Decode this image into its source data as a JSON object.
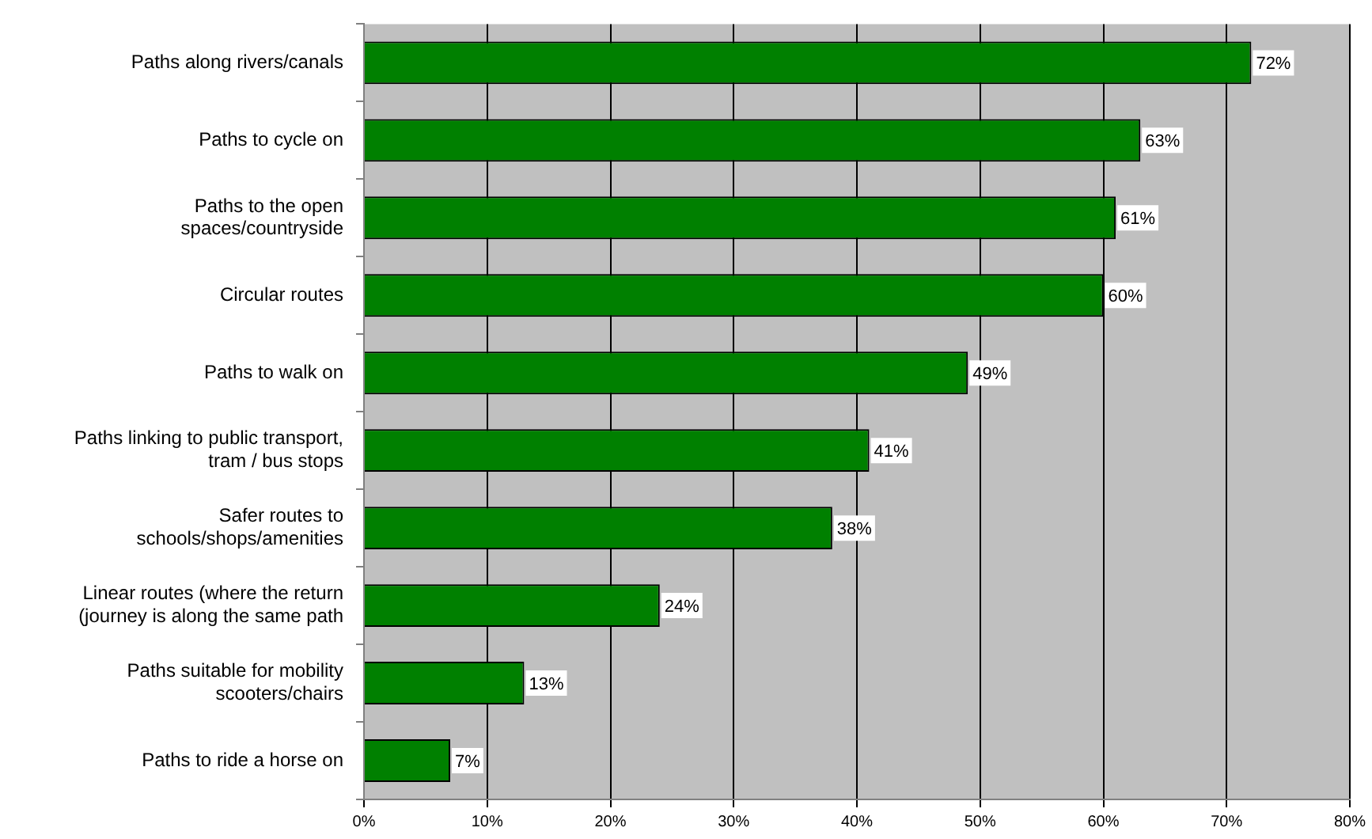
{
  "chart_data": {
    "type": "bar",
    "orientation": "horizontal",
    "categories": [
      "Paths along rivers/canals",
      "Paths to cycle on",
      "Paths to the open spaces/countryside",
      "Circular routes",
      "Paths to walk on",
      "Paths linking to public transport, tram / bus stops",
      "Safer routes to schools/shops/amenities",
      "Linear routes (where the return (journey is along the same path",
      "Paths suitable for mobility scooters/chairs",
      "Paths to ride a horse on"
    ],
    "values": [
      72,
      63,
      61,
      60,
      49,
      41,
      38,
      24,
      13,
      7
    ],
    "color": "#008000",
    "xlim": [
      0,
      80
    ],
    "xticks": [
      {
        "value": 0,
        "label": "0%"
      },
      {
        "value": 10,
        "label": "10%"
      },
      {
        "value": 20,
        "label": "20%"
      },
      {
        "value": 30,
        "label": "30%"
      },
      {
        "value": 40,
        "label": "40%"
      },
      {
        "value": 50,
        "label": "50%"
      },
      {
        "value": 60,
        "label": "60%"
      },
      {
        "value": 70,
        "label": "70%"
      },
      {
        "value": 80,
        "label": "80%"
      }
    ],
    "value_labels": [
      "72%",
      "63%",
      "61%",
      "60%",
      "49%",
      "41%",
      "38%",
      "24%",
      "13%",
      "7%"
    ],
    "grid": "x",
    "legend": false
  }
}
